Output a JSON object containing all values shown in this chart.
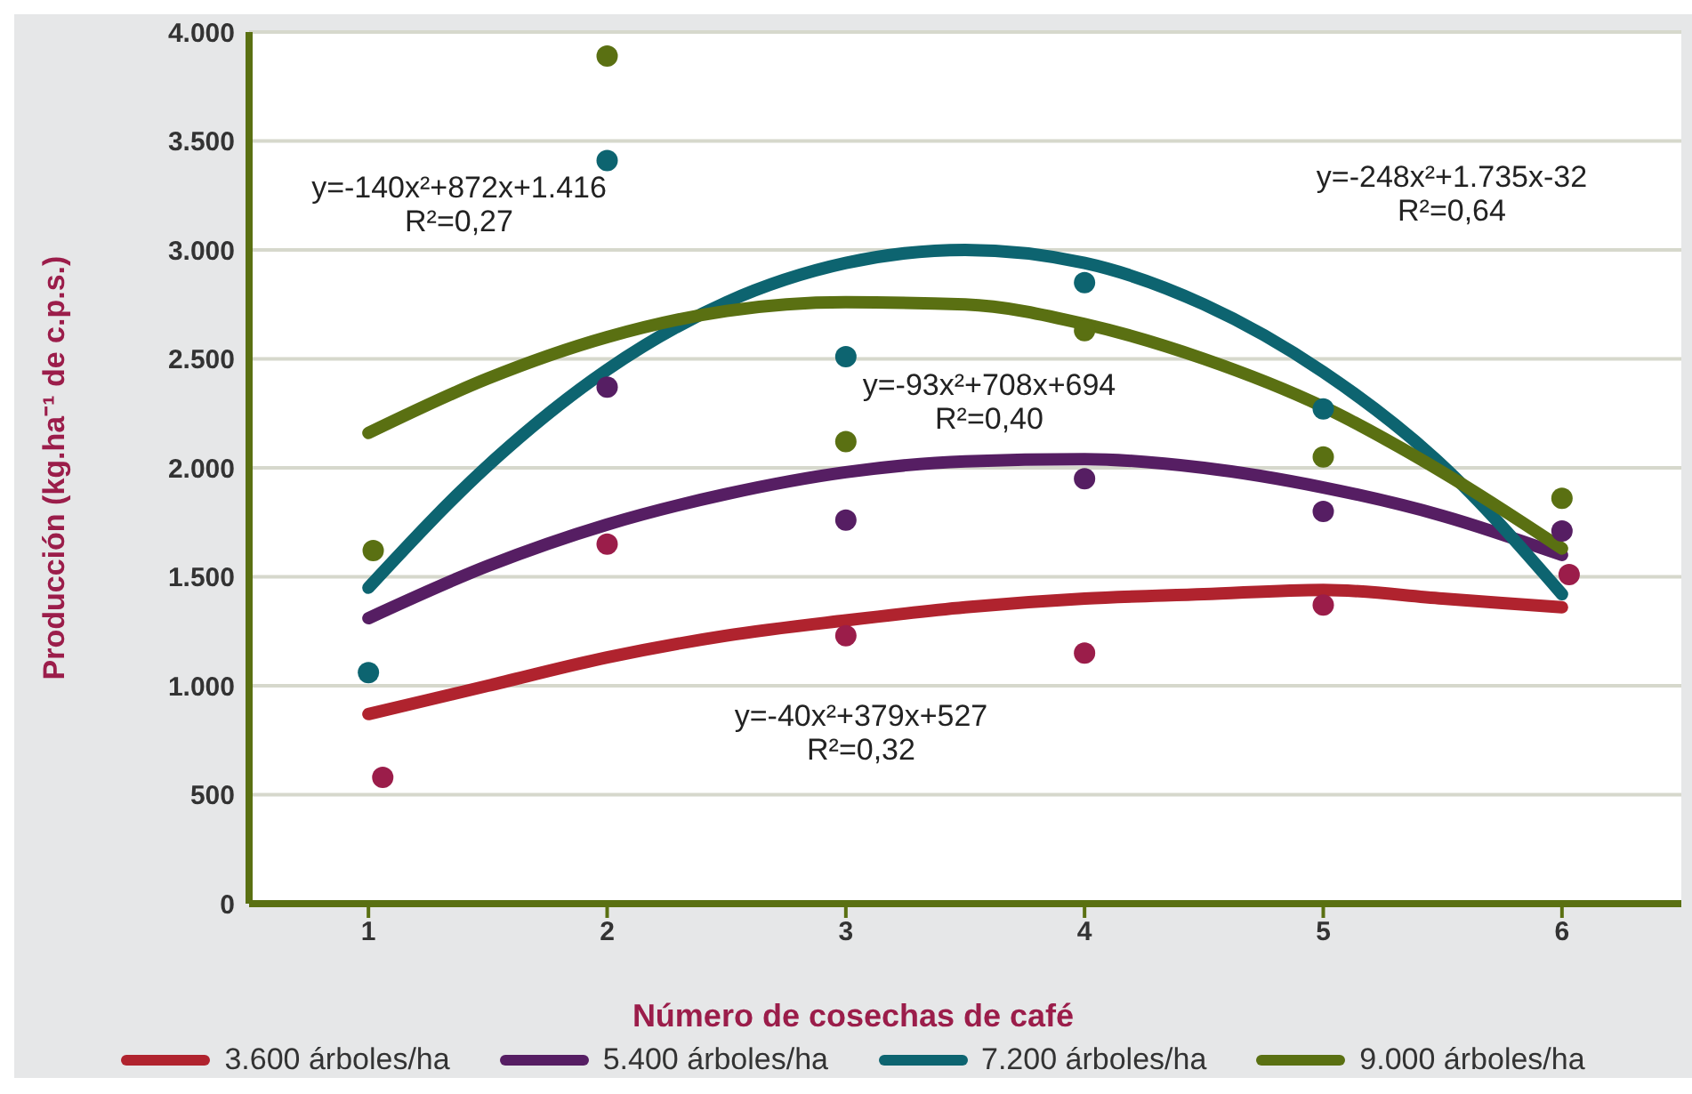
{
  "chart_data": {
    "type": "line",
    "xlabel": "Número de cosechas de café",
    "ylabel": "Producción (kg.ha⁻¹ de c.p.s.)",
    "xlim": [
      0.5,
      6.5
    ],
    "xticks": [
      1,
      2,
      3,
      4,
      5,
      6
    ],
    "ylim": [
      0,
      4000
    ],
    "yticks": [
      {
        "value": 0,
        "label": "0"
      },
      {
        "value": 500,
        "label": "500"
      },
      {
        "value": 1000,
        "label": "1.000"
      },
      {
        "value": 1500,
        "label": "1.500"
      },
      {
        "value": 2000,
        "label": "2.000"
      },
      {
        "value": 2500,
        "label": "2.500"
      },
      {
        "value": 3000,
        "label": "3.000"
      },
      {
        "value": 3500,
        "label": "3.500"
      },
      {
        "value": 4000,
        "label": "4.000"
      }
    ],
    "grid": "y",
    "legend": "bottom",
    "line_style": "solid",
    "series": [
      {
        "name": "3.600 árboles/ha",
        "marker": "none",
        "color": "#b0232e",
        "x": [
          1,
          1.5,
          2,
          2.5,
          3,
          3.5,
          4,
          4.5,
          5,
          5.5,
          6
        ],
        "values": [
          870,
          1000,
          1130,
          1230,
          1300,
          1360,
          1400,
          1420,
          1440,
          1400,
          1360
        ]
      },
      {
        "name": "5.400 árboles/ha",
        "marker": "none",
        "color": "#561e63",
        "x": [
          1,
          1.5,
          2,
          2.5,
          3,
          3.5,
          4,
          4.5,
          5,
          5.5,
          6
        ],
        "values": [
          1310,
          1550,
          1740,
          1880,
          1980,
          2030,
          2040,
          2000,
          1910,
          1780,
          1600
        ]
      },
      {
        "name": "7.200 árboles/ha",
        "marker": "none",
        "color": "#0d6470",
        "x": [
          1,
          1.5,
          2,
          2.5,
          3,
          3.5,
          4,
          4.5,
          5,
          5.5,
          6
        ],
        "values": [
          1450,
          2010,
          2450,
          2760,
          2940,
          3000,
          2940,
          2750,
          2440,
          2010,
          1420
        ]
      },
      {
        "name": "9.000 árboles/ha",
        "marker": "none",
        "color": "#5a7012",
        "x": [
          1,
          1.5,
          2,
          2.5,
          3,
          3.5,
          4,
          4.5,
          5,
          5.5,
          6
        ],
        "values": [
          2160,
          2410,
          2600,
          2720,
          2760,
          2750,
          2660,
          2500,
          2280,
          1980,
          1630
        ]
      },
      {
        "type": "scatter",
        "marker": "circle",
        "color": "#9b1d4a",
        "x": [
          1.06,
          2,
          3,
          4,
          5,
          6.03
        ],
        "values": [
          580,
          1650,
          1230,
          1150,
          1370,
          1510
        ]
      },
      {
        "type": "scatter",
        "marker": "circle",
        "color": "#561e63",
        "x": [
          2,
          3,
          4,
          5,
          6
        ],
        "values": [
          2370,
          1760,
          1950,
          1800,
          1710
        ]
      },
      {
        "type": "scatter",
        "marker": "circle",
        "color": "#0d6470",
        "x": [
          1,
          2,
          3,
          4,
          5
        ],
        "values": [
          1060,
          3410,
          2510,
          2850,
          2270
        ]
      },
      {
        "type": "scatter",
        "marker": "circle",
        "color": "#5a7012",
        "x": [
          1.02,
          2,
          3,
          4,
          5,
          6
        ],
        "values": [
          1620,
          3890,
          2120,
          2630,
          2050,
          1860
        ]
      }
    ],
    "annotations": [
      "y=-140x²+872x+1.416",
      "R²=0,27",
      "y=-248x²+1.735x-32",
      "R²=0,64",
      "y=-93x²+708x+694",
      "R²=0,40",
      "y=-40x²+379x+527",
      "R²=0,32"
    ]
  }
}
